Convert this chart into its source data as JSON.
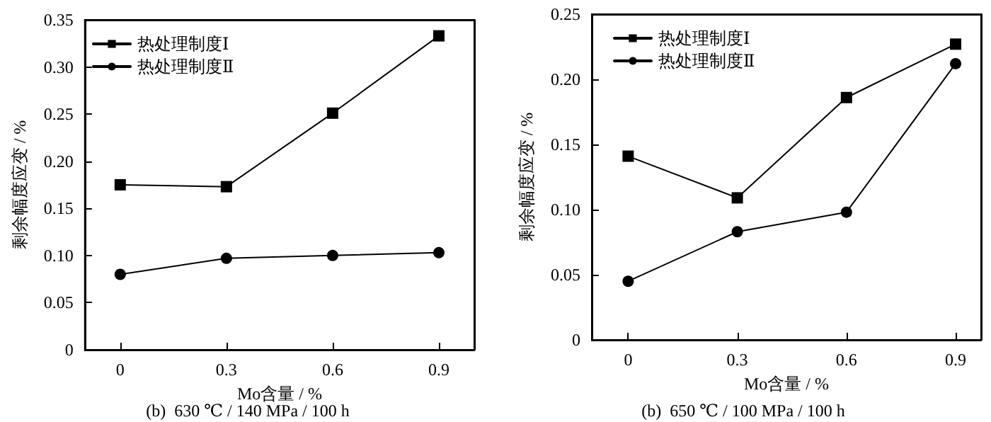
{
  "chart_data": [
    {
      "type": "line",
      "xlabel": "Mo含量 / %",
      "ylabel": "剩余幅度应变 / %",
      "annotations": [
        "(b)  630 ℃ / 140 MPa / 100 h"
      ],
      "x": [
        0,
        0.3,
        0.6,
        0.9
      ],
      "xlim": [
        -0.1,
        1.0
      ],
      "xticks": [
        0,
        0.3,
        0.6,
        0.9
      ],
      "ylim": [
        0,
        0.35
      ],
      "yticks": [
        0,
        0.05,
        {
          "value": 0.1,
          "label": "0.10"
        },
        0.15,
        {
          "value": 0.2,
          "label": "0.20"
        },
        0.25,
        {
          "value": 0.3,
          "label": "0.30"
        },
        0.35
      ],
      "grid": false,
      "legend": "top left",
      "line_style": "solid",
      "series": [
        {
          "name": "热处理制度Ⅰ",
          "color": "#000000",
          "marker": "square",
          "values": [
            0.175,
            0.173,
            0.251,
            0.333
          ]
        },
        {
          "name": "热处理制度Ⅱ",
          "color": "#000000",
          "marker": "circle",
          "values": [
            0.08,
            0.097,
            0.1,
            0.103
          ]
        }
      ]
    },
    {
      "type": "line",
      "xlabel": "Mo含量 / %",
      "ylabel": "剩余幅度应变 / %",
      "annotations": [
        "(b)  650 ℃ / 100 MPa / 100 h"
      ],
      "x": [
        0,
        0.3,
        0.6,
        0.9
      ],
      "xlim": [
        -0.1,
        0.97
      ],
      "xticks": [
        0,
        0.3,
        0.6,
        0.9
      ],
      "ylim": [
        0,
        0.25
      ],
      "yticks": [
        0,
        0.05,
        {
          "value": 0.1,
          "label": "0.10"
        },
        0.15,
        {
          "value": 0.2,
          "label": "0.20"
        },
        0.25
      ],
      "grid": false,
      "legend": "top left",
      "line_style": "solid",
      "series": [
        {
          "name": "热处理制度Ⅰ",
          "color": "#000000",
          "marker": "square",
          "values": [
            0.141,
            0.109,
            0.186,
            0.227
          ]
        },
        {
          "name": "热处理制度Ⅱ",
          "color": "#000000",
          "marker": "circle",
          "values": [
            0.045,
            0.083,
            0.098,
            0.212
          ]
        }
      ]
    }
  ]
}
